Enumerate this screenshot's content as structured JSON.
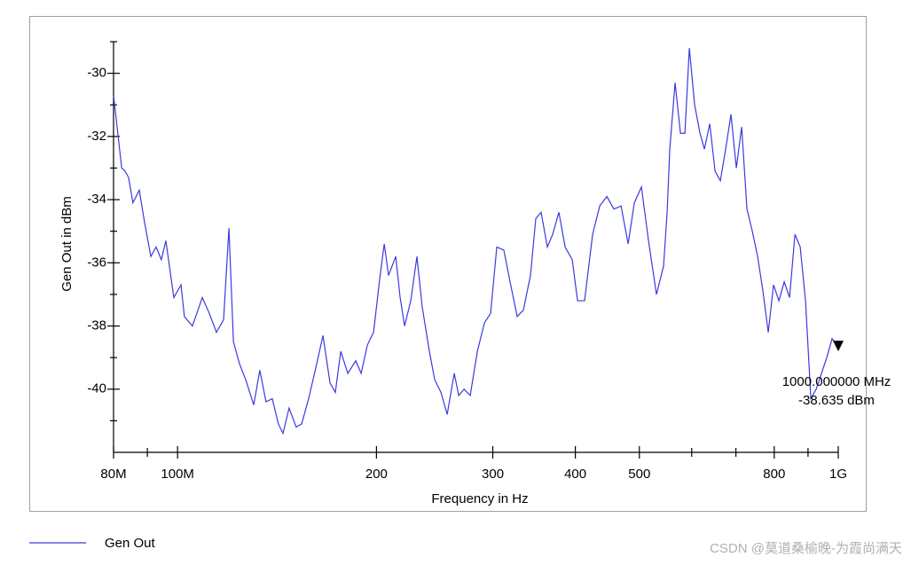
{
  "chart_data": {
    "type": "line",
    "x_label": "Frequency in Hz",
    "y_label": "Gen Out in dBm",
    "xscale": "log",
    "xlim": [
      80,
      1000
    ],
    "ylim": [
      -42,
      -29
    ],
    "xticks": [
      {
        "value": 80,
        "label": "80M"
      },
      {
        "value": 100,
        "label": "100M"
      },
      200,
      300,
      400,
      500,
      800,
      {
        "value": 1000,
        "label": "1G"
      }
    ],
    "xminorticks": [
      90,
      600,
      700,
      900
    ],
    "yticks": [
      -30,
      -32,
      -34,
      -36,
      -38,
      -40
    ],
    "yminorticks": [
      -29,
      -31,
      -33,
      -35,
      -37,
      -39,
      -41
    ],
    "grid": false,
    "series": [
      {
        "name": "Gen Out",
        "color": "#3a3ae0",
        "x": [
          80,
          81.2,
          82.3,
          83.3,
          84.3,
          85.6,
          87.5,
          89.1,
          91.1,
          92.8,
          94.5,
          96.0,
          98.7,
          101.2,
          102.4,
          105.3,
          109.0,
          111.7,
          114.5,
          117.4,
          119.6,
          121.5,
          124.1,
          126.8,
          130.4,
          133.2,
          136.1,
          139.1,
          142.1,
          144.4,
          147.5,
          151.2,
          154.1,
          157.9,
          162.4,
          166.0,
          170.1,
          173.3,
          176.6,
          181.0,
          186.1,
          189.6,
          193.8,
          198.0,
          202.3,
          205.5,
          208.6,
          213.9,
          217.2,
          220.6,
          225.4,
          230.3,
          234.6,
          240.5,
          245.0,
          250.4,
          255.9,
          262.3,
          266.4,
          271.4,
          277.3,
          284.3,
          291.4,
          297.7,
          304.2,
          311.8,
          318.6,
          326.6,
          333.7,
          342.1,
          348.5,
          355.0,
          362.8,
          369.6,
          377.7,
          386.0,
          395.7,
          403.1,
          413.1,
          424.8,
          435.5,
          446.4,
          457.6,
          469.1,
          480.8,
          491.3,
          503.6,
          516.2,
          530.7,
          544.0,
          550.8,
          555.9,
          566.3,
          577.0,
          586.0,
          595.1,
          606.2,
          617.6,
          627.2,
          639.0,
          651.0,
          663.1,
          675.4,
          688.1,
          701.0,
          714.1,
          727.5,
          741.1,
          755.0,
          769.1,
          783.5,
          798.1,
          813.2,
          828.4,
          843.9,
          859.9,
          875.8,
          892.2,
          908.9,
          925.9,
          943.3,
          960.7,
          978.8,
          1000
        ],
        "values": [
          -30.7,
          -31.9,
          -33.0,
          -33.1,
          -33.3,
          -34.1,
          -33.7,
          -34.7,
          -35.8,
          -35.5,
          -35.9,
          -35.3,
          -37.1,
          -36.7,
          -37.7,
          -38.0,
          -37.1,
          -37.6,
          -38.2,
          -37.8,
          -34.9,
          -38.5,
          -39.2,
          -39.7,
          -40.5,
          -39.4,
          -40.4,
          -40.3,
          -41.1,
          -41.4,
          -40.6,
          -41.2,
          -41.1,
          -40.3,
          -39.2,
          -38.3,
          -39.8,
          -40.1,
          -38.8,
          -39.5,
          -39.1,
          -39.5,
          -38.6,
          -38.2,
          -36.5,
          -35.4,
          -36.4,
          -35.8,
          -37.1,
          -38.0,
          -37.2,
          -35.8,
          -37.4,
          -38.8,
          -39.7,
          -40.1,
          -40.8,
          -39.5,
          -40.2,
          -40.0,
          -40.2,
          -38.8,
          -37.9,
          -37.6,
          -35.5,
          -35.6,
          -36.6,
          -37.7,
          -37.5,
          -36.4,
          -34.6,
          -34.4,
          -35.5,
          -35.1,
          -34.4,
          -35.5,
          -35.9,
          -37.2,
          -37.2,
          -35.1,
          -34.2,
          -33.9,
          -34.3,
          -34.2,
          -35.4,
          -34.1,
          -33.6,
          -35.3,
          -37.0,
          -36.1,
          -34.4,
          -32.4,
          -30.3,
          -31.9,
          -31.9,
          -29.2,
          -31.0,
          -31.9,
          -32.4,
          -31.6,
          -33.1,
          -33.4,
          -32.4,
          -31.3,
          -33.0,
          -31.7,
          -34.3,
          -35.0,
          -35.8,
          -36.9,
          -38.2,
          -36.7,
          -37.2,
          -36.6,
          -37.1,
          -35.1,
          -35.5,
          -37.2,
          -40.3,
          -40.0,
          -39.5,
          -39.0,
          -38.4,
          -38.635
        ]
      }
    ],
    "annotation": {
      "x": 1000,
      "y": -38.635,
      "lines": [
        "1000.000000 MHz",
        "-38.635 dBm"
      ]
    },
    "watermark": "CSDN @莫道桑榆晚-为霞尚满天"
  }
}
